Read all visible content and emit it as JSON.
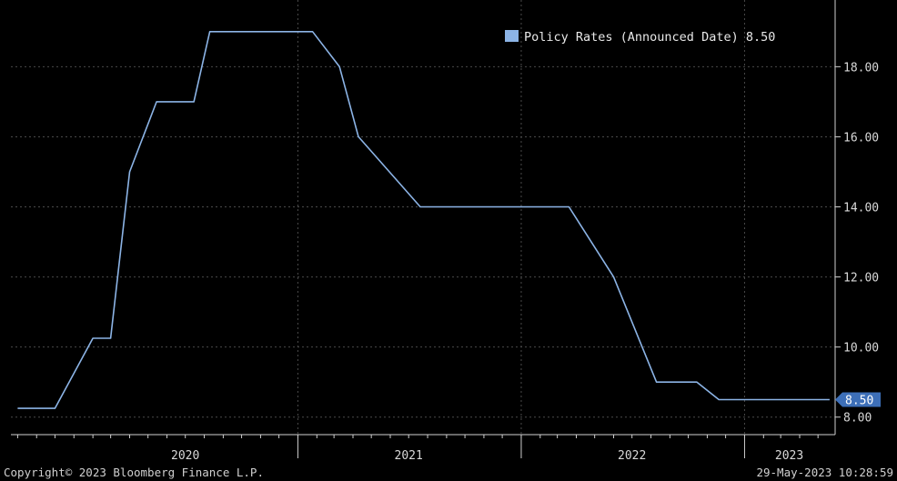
{
  "chart_data": {
    "type": "line",
    "title": "",
    "xlabel": "",
    "ylabel": "",
    "ylim": [
      7.5,
      19.8
    ],
    "y_ticks": [
      8.0,
      10.0,
      12.0,
      14.0,
      16.0,
      18.0
    ],
    "y_tick_labels": [
      "8.00",
      "10.00",
      "12.00",
      "14.00",
      "16.00",
      "18.00"
    ],
    "x_range": [
      "2019-09-20",
      "2023-05-29"
    ],
    "year_labels": [
      {
        "label": "2020",
        "date": "2020-07-01"
      },
      {
        "label": "2021",
        "date": "2021-07-01"
      },
      {
        "label": "2022",
        "date": "2022-07-01"
      },
      {
        "label": "2023",
        "date": "2023-03-15"
      }
    ],
    "year_boundaries": [
      "2021-01-01",
      "2022-01-01",
      "2023-01-01"
    ],
    "grid": true,
    "legend_position": "top-right",
    "series": [
      {
        "name": "Policy Rates (Announced Date)",
        "legend_value": "8.50",
        "last_value_label": "8.50",
        "color": "#8cb4e6",
        "points": [
          {
            "x": "2019-10-01",
            "y": 8.25
          },
          {
            "x": "2019-12-01",
            "y": 8.25
          },
          {
            "x": "2020-02-01",
            "y": 10.25
          },
          {
            "x": "2020-03-01",
            "y": 10.25
          },
          {
            "x": "2020-04-01",
            "y": 15.0
          },
          {
            "x": "2020-05-15",
            "y": 17.0
          },
          {
            "x": "2020-07-15",
            "y": 17.0
          },
          {
            "x": "2020-08-10",
            "y": 19.0
          },
          {
            "x": "2021-01-25",
            "y": 19.0
          },
          {
            "x": "2021-03-10",
            "y": 18.0
          },
          {
            "x": "2021-04-10",
            "y": 16.0
          },
          {
            "x": "2021-07-20",
            "y": 14.0
          },
          {
            "x": "2022-03-20",
            "y": 14.0
          },
          {
            "x": "2022-06-01",
            "y": 12.0
          },
          {
            "x": "2022-08-10",
            "y": 9.0
          },
          {
            "x": "2022-10-15",
            "y": 9.0
          },
          {
            "x": "2022-11-20",
            "y": 8.5
          },
          {
            "x": "2023-05-20",
            "y": 8.5
          }
        ]
      }
    ]
  },
  "footer": {
    "copyright": "Copyright© 2023 Bloomberg Finance L.P.",
    "timestamp": "29-May-2023 10:28:59"
  }
}
